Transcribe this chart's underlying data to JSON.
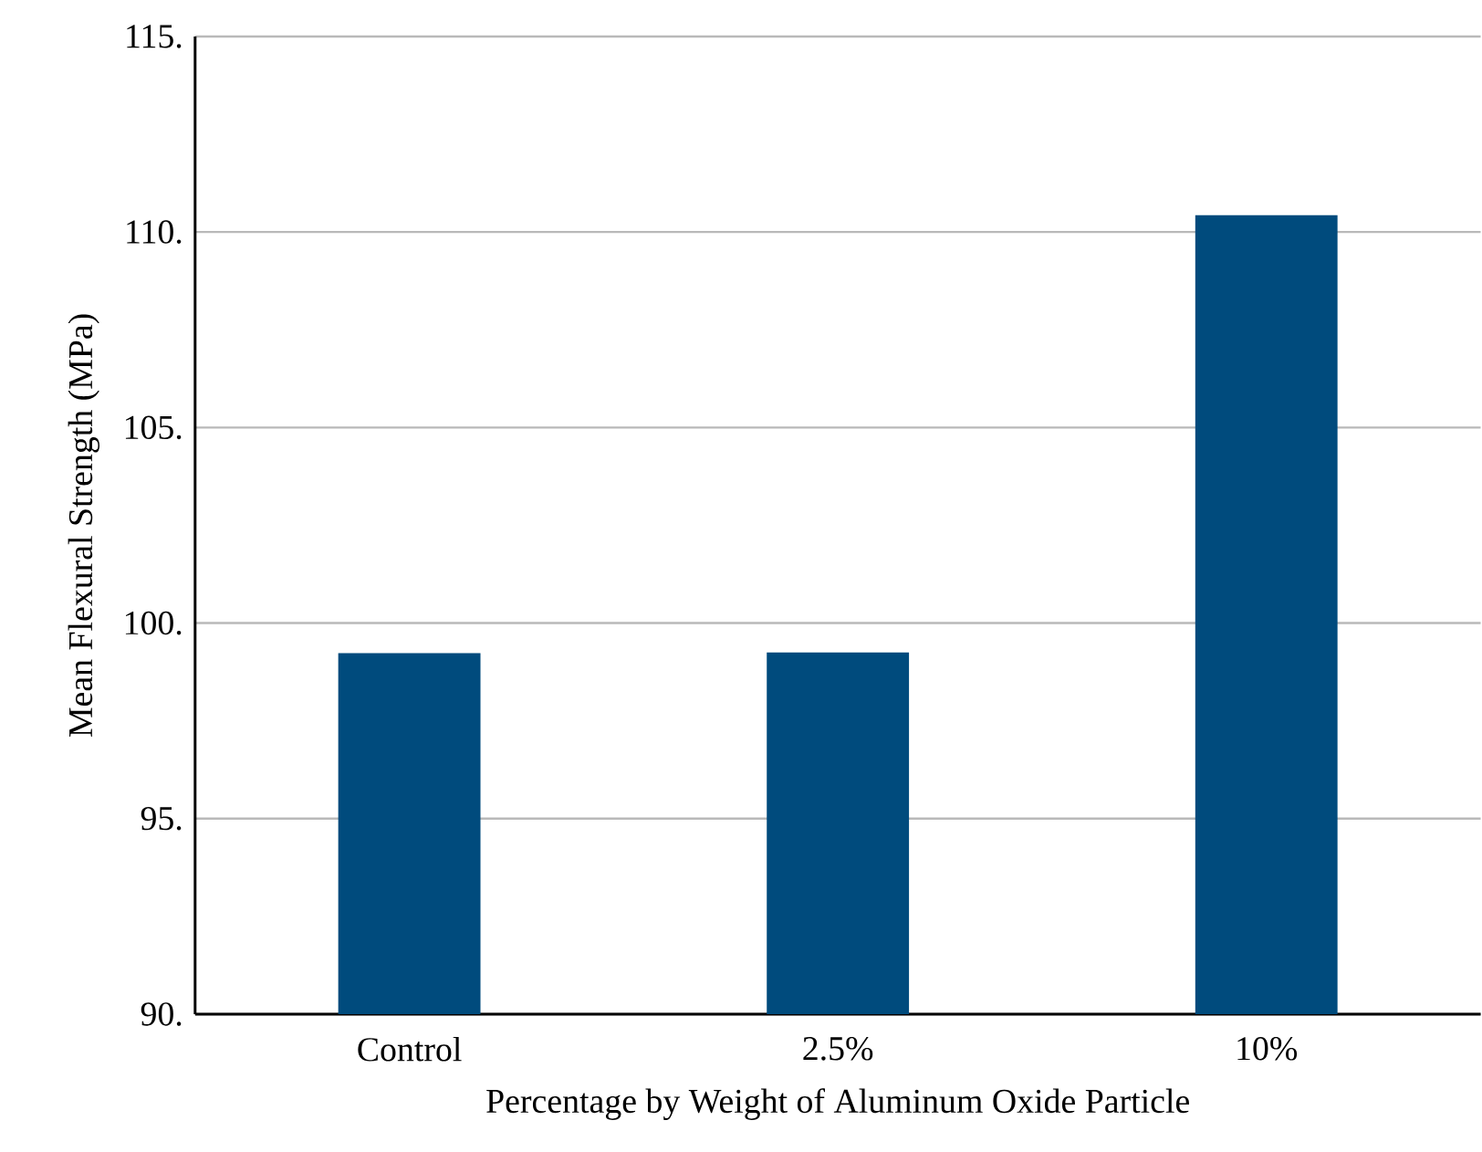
{
  "chart_data": {
    "type": "bar",
    "xlabel": "Percentage by Weight of Aluminum Oxide Particle",
    "ylabel": "Mean Flexural Strength (MPa)",
    "categories": [
      "Control",
      "2.5%",
      "10%"
    ],
    "values": [
      99.23,
      99.25,
      110.43
    ],
    "color": "#004b7d",
    "ylim": [
      90,
      115
    ],
    "yticks": [
      {
        "value": 90,
        "label": "90."
      },
      {
        "value": 95,
        "label": "95."
      },
      {
        "value": 100,
        "label": "100."
      },
      {
        "value": 105,
        "label": "105."
      },
      {
        "value": 110,
        "label": "110."
      },
      {
        "value": 115,
        "label": "115."
      }
    ],
    "grid": "y"
  }
}
